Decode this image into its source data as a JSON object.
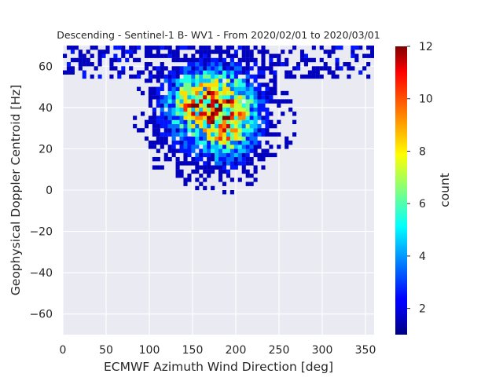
{
  "chart_data": {
    "type": "heatmap",
    "title": "Descending - Sentinel-1 B- WV1 - From 2020/02/01 to 2020/03/01",
    "xlabel": "ECMWF Azimuth Wind Direction [deg]",
    "ylabel": "Geophysical Doppler Centroid [Hz]",
    "xlim": [
      0,
      360
    ],
    "ylim": [
      -70,
      70
    ],
    "xticks": [
      "0",
      "50",
      "100",
      "150",
      "200",
      "250",
      "300",
      "350"
    ],
    "yticks": [
      "−60",
      "−40",
      "−20",
      "0",
      "20",
      "40",
      "60"
    ],
    "grid": true,
    "colorbar": {
      "label": "count",
      "range": [
        1,
        12
      ],
      "ticks": [
        "2",
        "4",
        "6",
        "8",
        "10",
        "12"
      ],
      "colormap": "jet"
    },
    "bins": {
      "x_bin_width_deg": 4.5,
      "y_bin_width_hz": 2,
      "x_start": 0,
      "y_start": -70
    },
    "density_model": {
      "description": "2D histogram of counts (1-12); core dense region about 130-230 deg, 15-60 Hz, sparse scatter along top edge 0-360 deg above 55 Hz",
      "clusters": [
        {
          "cx": 175,
          "cy": 38,
          "sx": 35,
          "sy": 14,
          "peak": 7.0
        },
        {
          "cx": 150,
          "cy": 45,
          "sx": 20,
          "sy": 8,
          "peak": 3.0
        },
        {
          "cx": 195,
          "cy": 32,
          "sx": 15,
          "sy": 12,
          "peak": 3.0
        }
      ],
      "top_band": {
        "y_min": 55,
        "y_max": 70,
        "x_min": 0,
        "x_max": 360,
        "occupancy": 0.45
      },
      "max_count": 12
    }
  }
}
